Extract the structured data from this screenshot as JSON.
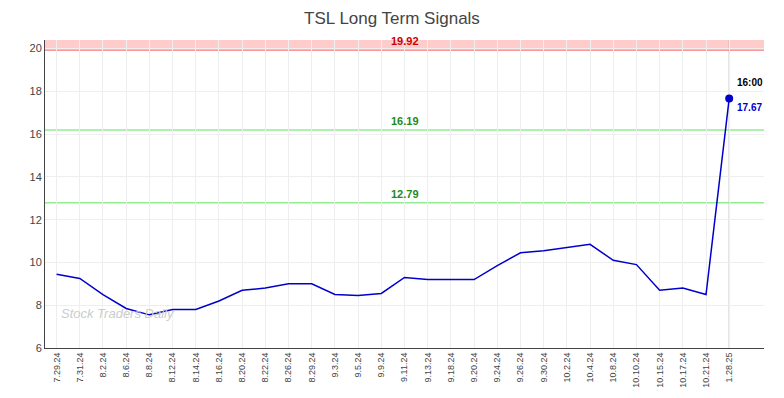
{
  "chart_data": {
    "type": "line",
    "title": "TSL Long Term Signals",
    "categories": [
      "7.29.24",
      "7.31.24",
      "8.2.24",
      "8.6.24",
      "8.8.24",
      "8.12.24",
      "8.14.24",
      "8.16.24",
      "8.20.24",
      "8.22.24",
      "8.26.24",
      "8.29.24",
      "9.3.24",
      "9.5.24",
      "9.9.24",
      "9.11.24",
      "9.13.24",
      "9.18.24",
      "9.20.24",
      "9.24.24",
      "9.26.24",
      "9.30.24",
      "10.2.24",
      "10.4.24",
      "10.8.24",
      "10.10.24",
      "10.15.24",
      "10.17.24",
      "10.21.24",
      "1.28.25"
    ],
    "values": [
      9.45,
      9.25,
      8.5,
      7.85,
      7.55,
      7.8,
      7.8,
      8.2,
      8.7,
      8.8,
      9.0,
      9.0,
      8.5,
      8.45,
      8.55,
      9.3,
      9.2,
      9.2,
      9.2,
      9.85,
      10.45,
      10.55,
      10.7,
      10.85,
      10.1,
      9.9,
      8.7,
      8.8,
      8.5,
      17.67
    ],
    "color": "#0000cc",
    "ylim": [
      6,
      20.4
    ],
    "yticks": [
      6,
      8,
      10,
      12,
      14,
      16,
      18,
      20
    ],
    "grid": true,
    "reference_lines": [
      {
        "value": 19.92,
        "label": "19.92",
        "color": "#ff9999",
        "label_color": "#cc0000",
        "band_color": "#ffcccc"
      },
      {
        "value": 16.19,
        "label": "16.19",
        "color": "#90EE90",
        "label_color": "#228B22"
      },
      {
        "value": 12.79,
        "label": "12.79",
        "color": "#90EE90",
        "label_color": "#228B22"
      }
    ],
    "vline": {
      "x": "1.28.25",
      "color": "#aaaaaa",
      "marker_color": "#0000cc"
    },
    "annotations": [
      {
        "x": "1.28.25",
        "y": 17.67,
        "text": "16:00",
        "color": "#000000"
      },
      {
        "x": "1.28.25",
        "y": 17.67,
        "text": "17.67",
        "color": "#0000cc"
      }
    ],
    "watermark": {
      "text": "Stock Traders Daily",
      "color": "#cccccc"
    }
  }
}
